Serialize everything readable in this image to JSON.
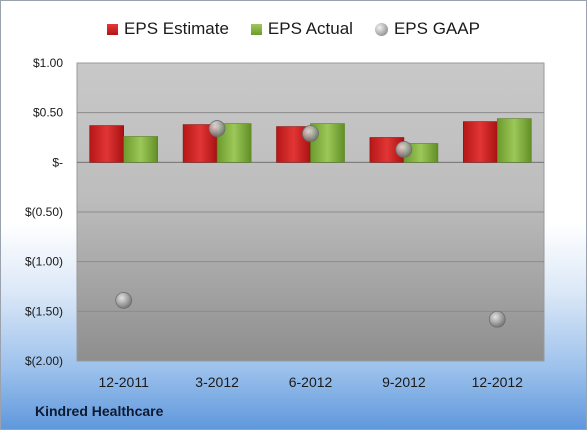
{
  "legend": {
    "estimate_label": "EPS Estimate",
    "actual_label": "EPS Actual",
    "gaap_label": "EPS GAAP"
  },
  "company": "Kindred Healthcare",
  "colors": {
    "estimate": "#d42424",
    "actual": "#86b443",
    "gaap": "#a8a8a8"
  },
  "chart_data": {
    "type": "bar",
    "categories": [
      "12-2011",
      "3-2012",
      "6-2012",
      "9-2012",
      "12-2012"
    ],
    "series": [
      {
        "name": "EPS Estimate",
        "type": "bar",
        "values": [
          0.37,
          0.38,
          0.36,
          0.25,
          0.41
        ]
      },
      {
        "name": "EPS Actual",
        "type": "bar",
        "values": [
          0.26,
          0.39,
          0.39,
          0.19,
          0.44
        ]
      },
      {
        "name": "EPS GAAP",
        "type": "scatter",
        "values": [
          -1.39,
          0.34,
          0.29,
          0.13,
          -1.58
        ]
      }
    ],
    "y_ticks": [
      1.0,
      0.5,
      0.0,
      -0.5,
      -1.0,
      -1.5,
      -2.0
    ],
    "y_tick_labels": [
      "$1.00",
      "$0.50",
      "$-",
      "$(0.50)",
      "$(1.00)",
      "$(1.50)",
      "$(2.00)"
    ],
    "ylim": [
      -2.0,
      1.0
    ],
    "grid": true,
    "legend_position": "top"
  }
}
